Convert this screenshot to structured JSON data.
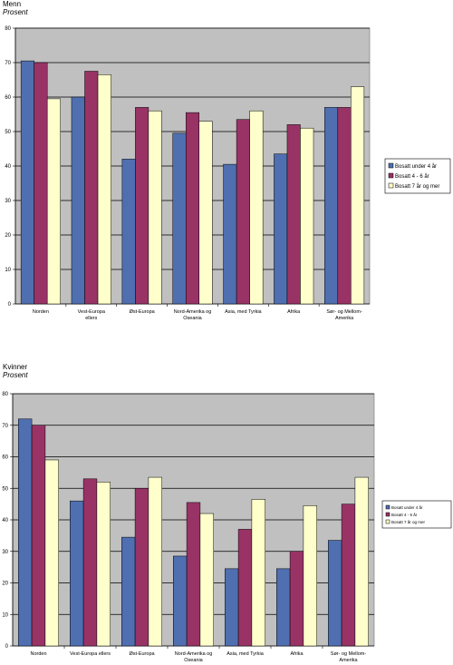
{
  "chart_data": [
    {
      "type": "bar",
      "title": "Menn",
      "subtitle": "Prosent",
      "categories": [
        "Norden",
        [
          "Vest-Europa",
          "ellers"
        ],
        "Øst-Europa",
        [
          "Nord-Amerika og",
          "Oseania"
        ],
        "Asia, med Tyrkia",
        "Afrika",
        [
          "Sør- og Mellom-",
          "Amerika"
        ]
      ],
      "series": [
        {
          "name": "Bosatt under 4 år",
          "values": [
            70.5,
            60,
            42,
            49.5,
            40.5,
            43.5,
            57
          ],
          "color": "#4f6fb0"
        },
        {
          "name": "Bosatt 4 - 6 år",
          "values": [
            70,
            67.5,
            57,
            55.5,
            53.5,
            52,
            57
          ],
          "color": "#993366"
        },
        {
          "name": "Bosatt 7 år og mer",
          "values": [
            59.5,
            66.5,
            56,
            53,
            56,
            51,
            63
          ],
          "color": "#ffffcc"
        }
      ],
      "ylim": [
        0,
        80
      ],
      "yticks": [
        0,
        10,
        20,
        30,
        40,
        50,
        60,
        70,
        80
      ],
      "grid": true,
      "legend": "right"
    },
    {
      "type": "bar",
      "title": "Kvinner",
      "subtitle": "Prosent",
      "categories": [
        "Norden",
        "Vest-Europa ellers",
        "Øst-Europa",
        [
          "Nord-Amerika og",
          "Oseania"
        ],
        "Asia, med Tyrkia",
        "Afrika",
        [
          "Sør- og Mellom-",
          "Amerika"
        ]
      ],
      "series": [
        {
          "name": "Bosatt under 4 år",
          "values": [
            72,
            46,
            34.5,
            28.5,
            24.5,
            24.5,
            33.5
          ],
          "color": "#4f6fb0"
        },
        {
          "name": "Bosatt 4 - 6 år",
          "values": [
            70,
            53,
            50,
            45.5,
            37,
            30,
            45
          ],
          "color": "#993366"
        },
        {
          "name": "Bosatt 7 år og mer",
          "values": [
            59,
            52,
            53.5,
            42,
            46.5,
            44.5,
            53.5
          ],
          "color": "#ffffcc"
        }
      ],
      "ylim": [
        0,
        80
      ],
      "yticks": [
        0,
        10,
        20,
        30,
        40,
        50,
        60,
        70,
        80
      ],
      "grid": true,
      "legend": "right"
    }
  ]
}
